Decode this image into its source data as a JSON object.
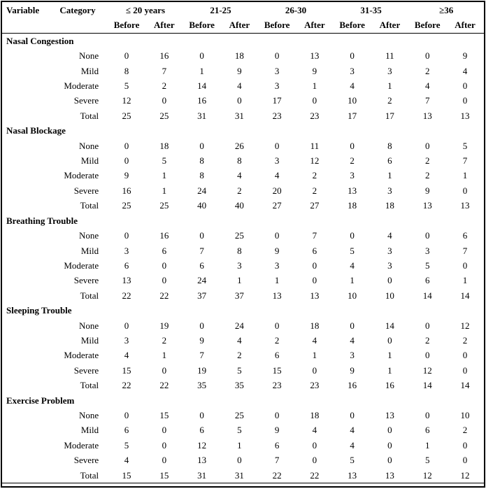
{
  "table": {
    "header": {
      "variable_label": "Variable",
      "category_label": "Category",
      "age_groups": [
        "≤ 20 years",
        "21-25",
        "26-30",
        "31-35",
        "≥36"
      ],
      "before_label": "Before",
      "after_label": "After"
    },
    "sections": [
      {
        "variable": "Nasal Congestion",
        "rows": [
          {
            "category": "None",
            "values": [
              0,
              16,
              0,
              18,
              0,
              13,
              0,
              11,
              0,
              9
            ]
          },
          {
            "category": "Mild",
            "values": [
              8,
              7,
              1,
              9,
              3,
              9,
              3,
              3,
              2,
              4
            ]
          },
          {
            "category": "Moderate",
            "values": [
              5,
              2,
              14,
              4,
              3,
              1,
              4,
              1,
              4,
              0
            ]
          },
          {
            "category": "Severe",
            "values": [
              12,
              0,
              16,
              0,
              17,
              0,
              10,
              2,
              7,
              0
            ]
          },
          {
            "category": "Total",
            "values": [
              25,
              25,
              31,
              31,
              23,
              23,
              17,
              17,
              13,
              13
            ]
          }
        ]
      },
      {
        "variable": "Nasal Blockage",
        "rows": [
          {
            "category": "None",
            "values": [
              0,
              18,
              0,
              26,
              0,
              11,
              0,
              8,
              0,
              5
            ]
          },
          {
            "category": "Mild",
            "values": [
              0,
              5,
              8,
              8,
              3,
              12,
              2,
              6,
              2,
              7
            ]
          },
          {
            "category": "Moderate",
            "values": [
              9,
              1,
              8,
              4,
              4,
              2,
              3,
              1,
              2,
              1
            ]
          },
          {
            "category": "Severe",
            "values": [
              16,
              1,
              24,
              2,
              20,
              2,
              13,
              3,
              9,
              0
            ]
          },
          {
            "category": "Total",
            "values": [
              25,
              25,
              40,
              40,
              27,
              27,
              18,
              18,
              13,
              13
            ]
          }
        ]
      },
      {
        "variable": "Breathing Trouble",
        "rows": [
          {
            "category": "None",
            "values": [
              0,
              16,
              0,
              25,
              0,
              7,
              0,
              4,
              0,
              6
            ]
          },
          {
            "category": "Mild",
            "values": [
              3,
              6,
              7,
              8,
              9,
              6,
              5,
              3,
              3,
              7
            ]
          },
          {
            "category": "Moderate",
            "values": [
              6,
              0,
              6,
              3,
              3,
              0,
              4,
              3,
              5,
              0
            ]
          },
          {
            "category": "Severe",
            "values": [
              13,
              0,
              24,
              1,
              1,
              0,
              1,
              0,
              6,
              1
            ]
          },
          {
            "category": "Total",
            "values": [
              22,
              22,
              37,
              37,
              13,
              13,
              10,
              10,
              14,
              14
            ]
          }
        ]
      },
      {
        "variable": "Sleeping Trouble",
        "rows": [
          {
            "category": "None",
            "values": [
              0,
              19,
              0,
              24,
              0,
              18,
              0,
              14,
              0,
              12
            ]
          },
          {
            "category": "Mild",
            "values": [
              3,
              2,
              9,
              4,
              2,
              4,
              4,
              0,
              2,
              2
            ]
          },
          {
            "category": "Moderate",
            "values": [
              4,
              1,
              7,
              2,
              6,
              1,
              3,
              1,
              0,
              0
            ]
          },
          {
            "category": "Severe",
            "values": [
              15,
              0,
              19,
              5,
              15,
              0,
              9,
              1,
              12,
              0
            ]
          },
          {
            "category": "Total",
            "values": [
              22,
              22,
              35,
              35,
              23,
              23,
              16,
              16,
              14,
              14
            ]
          }
        ]
      },
      {
        "variable": "Exercise Problem",
        "rows": [
          {
            "category": "None",
            "values": [
              0,
              15,
              0,
              25,
              0,
              18,
              0,
              13,
              0,
              10
            ]
          },
          {
            "category": "Mild",
            "values": [
              6,
              0,
              6,
              5,
              9,
              4,
              4,
              0,
              6,
              2
            ]
          },
          {
            "category": "Moderate",
            "values": [
              5,
              0,
              12,
              1,
              6,
              0,
              4,
              0,
              1,
              0
            ]
          },
          {
            "category": "Severe",
            "values": [
              4,
              0,
              13,
              0,
              7,
              0,
              5,
              0,
              5,
              0
            ]
          },
          {
            "category": "Total",
            "values": [
              15,
              15,
              31,
              31,
              22,
              22,
              13,
              13,
              12,
              12
            ]
          }
        ]
      }
    ]
  }
}
